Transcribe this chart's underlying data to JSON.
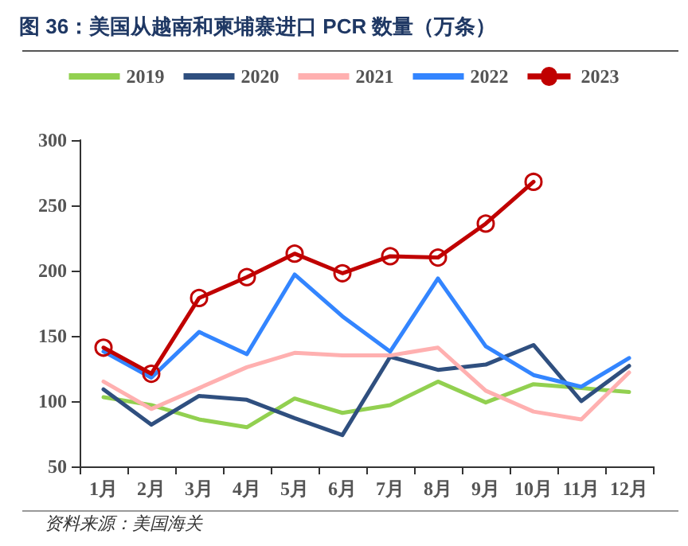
{
  "chart_data": {
    "type": "line",
    "title": "图 36：美国从越南和柬埔寨进口 PCR 数量（万条）",
    "categories": [
      "1月",
      "2月",
      "3月",
      "4月",
      "5月",
      "6月",
      "7月",
      "8月",
      "9月",
      "10月",
      "11月",
      "12月"
    ],
    "series": [
      {
        "name": "2019",
        "color": "#92d050",
        "values": [
          103,
          97,
          86,
          80,
          102,
          91,
          97,
          115,
          99,
          113,
          110,
          107
        ]
      },
      {
        "name": "2020",
        "color": "#2f4f7f",
        "values": [
          109,
          82,
          104,
          101,
          87,
          74,
          134,
          124,
          128,
          143,
          100,
          127
        ]
      },
      {
        "name": "2021",
        "color": "#ffb0b0",
        "values": [
          115,
          94,
          110,
          126,
          137,
          135,
          135,
          141,
          108,
          92,
          86,
          122
        ]
      },
      {
        "name": "2022",
        "color": "#3385ff",
        "values": [
          138,
          118,
          153,
          136,
          197,
          165,
          138,
          194,
          142,
          120,
          111,
          133
        ]
      },
      {
        "name": "2023",
        "color": "#c00000",
        "marker": "circle",
        "values": [
          141,
          121,
          179,
          195,
          213,
          198,
          211,
          210,
          236,
          268,
          null,
          null
        ]
      }
    ],
    "ylim": [
      50,
      300
    ],
    "yticks": [
      50,
      100,
      150,
      200,
      250,
      300
    ],
    "grid": false,
    "legend": "top",
    "marker": "none",
    "line_style": "solid",
    "annotations": [
      "资料来源：美国海关"
    ]
  }
}
